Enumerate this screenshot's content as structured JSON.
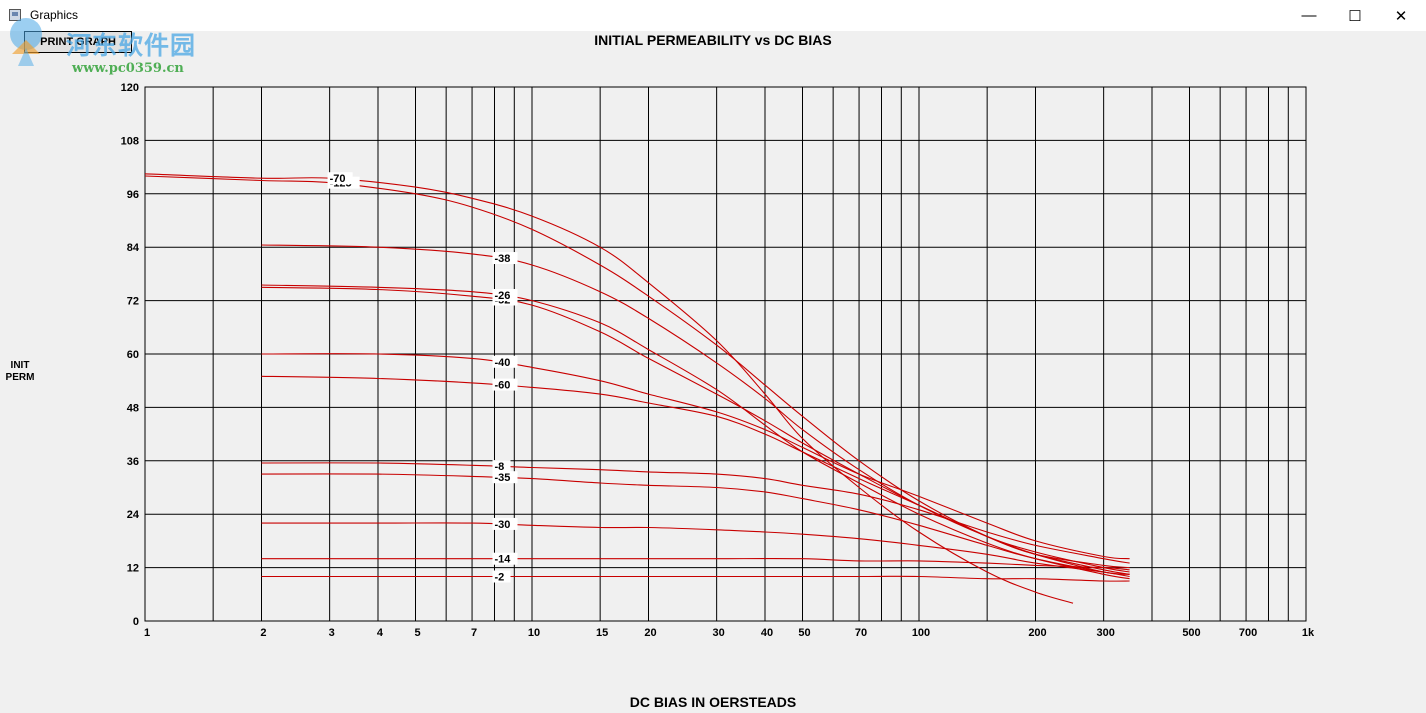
{
  "window": {
    "title": "Graphics",
    "minimize_glyph": "—",
    "maximize_glyph": "☐",
    "close_glyph": "✕"
  },
  "toolbar": {
    "print_label": "PRINT GRAPH"
  },
  "watermark": {
    "text_cn": "河东软件园",
    "url": "www.pc0359.cn"
  },
  "colors": {
    "curve": "#c80000",
    "grid": "#000000",
    "background": "#f0f0f0"
  },
  "chart_data": {
    "type": "line",
    "title": "INITIAL PERMEABILITY vs DC BIAS",
    "xlabel": "DC BIAS IN OERSTEADS",
    "ylabel": [
      "INIT",
      "PERM"
    ],
    "xscale": "log",
    "xlim": [
      1,
      1000
    ],
    "ylim": [
      0,
      120
    ],
    "grid": true,
    "yticks": [
      0,
      12,
      24,
      36,
      48,
      60,
      72,
      84,
      96,
      108,
      120
    ],
    "xticks": [
      {
        "v": 1,
        "label": "1"
      },
      {
        "v": 2,
        "label": "2"
      },
      {
        "v": 3,
        "label": "3"
      },
      {
        "v": 4,
        "label": "4"
      },
      {
        "v": 5,
        "label": "5"
      },
      {
        "v": 7,
        "label": "7"
      },
      {
        "v": 10,
        "label": "10"
      },
      {
        "v": 15,
        "label": "15"
      },
      {
        "v": 20,
        "label": "20"
      },
      {
        "v": 30,
        "label": "30"
      },
      {
        "v": 40,
        "label": "40"
      },
      {
        "v": 50,
        "label": "50"
      },
      {
        "v": 70,
        "label": "70"
      },
      {
        "v": 100,
        "label": "100"
      },
      {
        "v": 200,
        "label": "200"
      },
      {
        "v": 300,
        "label": "300"
      },
      {
        "v": 500,
        "label": "500"
      },
      {
        "v": 700,
        "label": "700"
      },
      {
        "v": 1000,
        "label": "1k"
      }
    ],
    "gridlines_x": [
      1.5,
      2,
      3,
      4,
      5,
      6,
      7,
      8,
      9,
      10,
      15,
      20,
      30,
      40,
      50,
      60,
      70,
      80,
      90,
      100,
      150,
      200,
      300,
      400,
      500,
      600,
      700,
      800,
      900,
      1000
    ],
    "series": [
      {
        "name": "-125",
        "label_at": 3,
        "points": [
          [
            1,
            100
          ],
          [
            2,
            99
          ],
          [
            3,
            98.5
          ],
          [
            5,
            96
          ],
          [
            7,
            93
          ],
          [
            10,
            88
          ],
          [
            15,
            80
          ],
          [
            20,
            73
          ],
          [
            30,
            62
          ],
          [
            40,
            53
          ],
          [
            50,
            46
          ],
          [
            70,
            36
          ],
          [
            100,
            27
          ],
          [
            150,
            19
          ],
          [
            200,
            15
          ],
          [
            300,
            11.5
          ],
          [
            350,
            10.5
          ]
        ]
      },
      {
        "name": "-70",
        "label_at": 3,
        "points": [
          [
            1,
            100.5
          ],
          [
            2,
            99.5
          ],
          [
            3,
            99.5
          ],
          [
            5,
            97.5
          ],
          [
            7,
            95
          ],
          [
            10,
            91
          ],
          [
            15,
            84
          ],
          [
            20,
            76
          ],
          [
            30,
            63
          ],
          [
            40,
            51
          ],
          [
            50,
            41
          ],
          [
            70,
            30
          ],
          [
            100,
            20
          ],
          [
            150,
            11
          ],
          [
            200,
            6.5
          ],
          [
            250,
            4
          ]
        ]
      },
      {
        "name": "-38",
        "label_at": 8,
        "points": [
          [
            2,
            84.5
          ],
          [
            4,
            84
          ],
          [
            7,
            82.5
          ],
          [
            10,
            80
          ],
          [
            15,
            74
          ],
          [
            20,
            68
          ],
          [
            30,
            58
          ],
          [
            40,
            50
          ],
          [
            50,
            43
          ],
          [
            70,
            34
          ],
          [
            100,
            26
          ],
          [
            150,
            19
          ],
          [
            200,
            15.5
          ],
          [
            300,
            12
          ],
          [
            350,
            11
          ]
        ]
      },
      {
        "name": "-52",
        "label_at": 8,
        "points": [
          [
            2,
            75
          ],
          [
            4,
            74.5
          ],
          [
            7,
            73
          ],
          [
            10,
            71
          ],
          [
            15,
            65
          ],
          [
            20,
            59
          ],
          [
            30,
            51
          ],
          [
            40,
            45
          ],
          [
            50,
            40
          ],
          [
            70,
            33
          ],
          [
            100,
            26
          ],
          [
            150,
            19
          ],
          [
            200,
            15
          ],
          [
            300,
            11
          ],
          [
            350,
            10.5
          ]
        ]
      },
      {
        "name": "-26",
        "label_at": 8,
        "points": [
          [
            2,
            75.5
          ],
          [
            4,
            75
          ],
          [
            7,
            74
          ],
          [
            10,
            72
          ],
          [
            15,
            67
          ],
          [
            20,
            61
          ],
          [
            30,
            52
          ],
          [
            40,
            44
          ],
          [
            50,
            38
          ],
          [
            70,
            31
          ],
          [
            100,
            24
          ],
          [
            150,
            17.5
          ],
          [
            200,
            14
          ],
          [
            300,
            10.5
          ],
          [
            350,
            9.5
          ]
        ]
      },
      {
        "name": "-40",
        "label_at": 8,
        "points": [
          [
            2,
            60
          ],
          [
            4,
            60
          ],
          [
            7,
            59
          ],
          [
            10,
            57
          ],
          [
            15,
            54
          ],
          [
            20,
            51
          ],
          [
            30,
            47
          ],
          [
            40,
            43
          ],
          [
            50,
            39
          ],
          [
            70,
            33
          ],
          [
            100,
            28
          ],
          [
            150,
            22
          ],
          [
            200,
            18
          ],
          [
            300,
            14.5
          ],
          [
            350,
            14
          ]
        ]
      },
      {
        "name": "-60",
        "label_at": 8,
        "points": [
          [
            2,
            55
          ],
          [
            4,
            54.5
          ],
          [
            7,
            53.5
          ],
          [
            10,
            52.5
          ],
          [
            15,
            51
          ],
          [
            20,
            49
          ],
          [
            30,
            46
          ],
          [
            40,
            42
          ],
          [
            50,
            38
          ],
          [
            70,
            32
          ],
          [
            100,
            26
          ],
          [
            150,
            19
          ],
          [
            200,
            15
          ],
          [
            300,
            12.5
          ],
          [
            350,
            12
          ]
        ]
      },
      {
        "name": "-8",
        "label_at": 8,
        "points": [
          [
            2,
            35.5
          ],
          [
            4,
            35.5
          ],
          [
            7,
            35
          ],
          [
            10,
            34.5
          ],
          [
            15,
            34
          ],
          [
            20,
            33.5
          ],
          [
            30,
            33
          ],
          [
            40,
            32
          ],
          [
            50,
            30.5
          ],
          [
            70,
            28.5
          ],
          [
            100,
            25
          ],
          [
            150,
            20
          ],
          [
            200,
            17
          ],
          [
            300,
            14
          ],
          [
            350,
            13
          ]
        ]
      },
      {
        "name": "-35",
        "label_at": 8,
        "points": [
          [
            2,
            33
          ],
          [
            4,
            33
          ],
          [
            7,
            32.5
          ],
          [
            10,
            32
          ],
          [
            15,
            31
          ],
          [
            20,
            30.5
          ],
          [
            30,
            30
          ],
          [
            40,
            29
          ],
          [
            50,
            27.5
          ],
          [
            70,
            25
          ],
          [
            100,
            21.5
          ],
          [
            150,
            17
          ],
          [
            200,
            14
          ],
          [
            300,
            11
          ],
          [
            350,
            10.5
          ]
        ]
      },
      {
        "name": "-30",
        "label_at": 8,
        "points": [
          [
            2,
            22
          ],
          [
            4,
            22
          ],
          [
            7,
            22
          ],
          [
            10,
            21.5
          ],
          [
            15,
            21
          ],
          [
            20,
            21
          ],
          [
            30,
            20.5
          ],
          [
            40,
            20
          ],
          [
            50,
            19.5
          ],
          [
            70,
            18.5
          ],
          [
            100,
            17
          ],
          [
            150,
            15
          ],
          [
            200,
            13
          ],
          [
            300,
            11
          ],
          [
            350,
            10
          ]
        ]
      },
      {
        "name": "-14",
        "label_at": 8,
        "points": [
          [
            2,
            14
          ],
          [
            4,
            14
          ],
          [
            7,
            14
          ],
          [
            10,
            14
          ],
          [
            15,
            14
          ],
          [
            20,
            14
          ],
          [
            30,
            14
          ],
          [
            50,
            14
          ],
          [
            70,
            13.5
          ],
          [
            100,
            13.5
          ],
          [
            150,
            13
          ],
          [
            200,
            12.5
          ],
          [
            300,
            12
          ],
          [
            350,
            11.5
          ]
        ]
      },
      {
        "name": "-2",
        "label_at": 8,
        "points": [
          [
            2,
            10
          ],
          [
            4,
            10
          ],
          [
            7,
            10
          ],
          [
            10,
            10
          ],
          [
            15,
            10
          ],
          [
            20,
            10
          ],
          [
            30,
            10
          ],
          [
            50,
            10
          ],
          [
            70,
            10
          ],
          [
            100,
            10
          ],
          [
            150,
            9.5
          ],
          [
            200,
            9.5
          ],
          [
            300,
            9
          ],
          [
            350,
            9
          ]
        ]
      }
    ]
  }
}
